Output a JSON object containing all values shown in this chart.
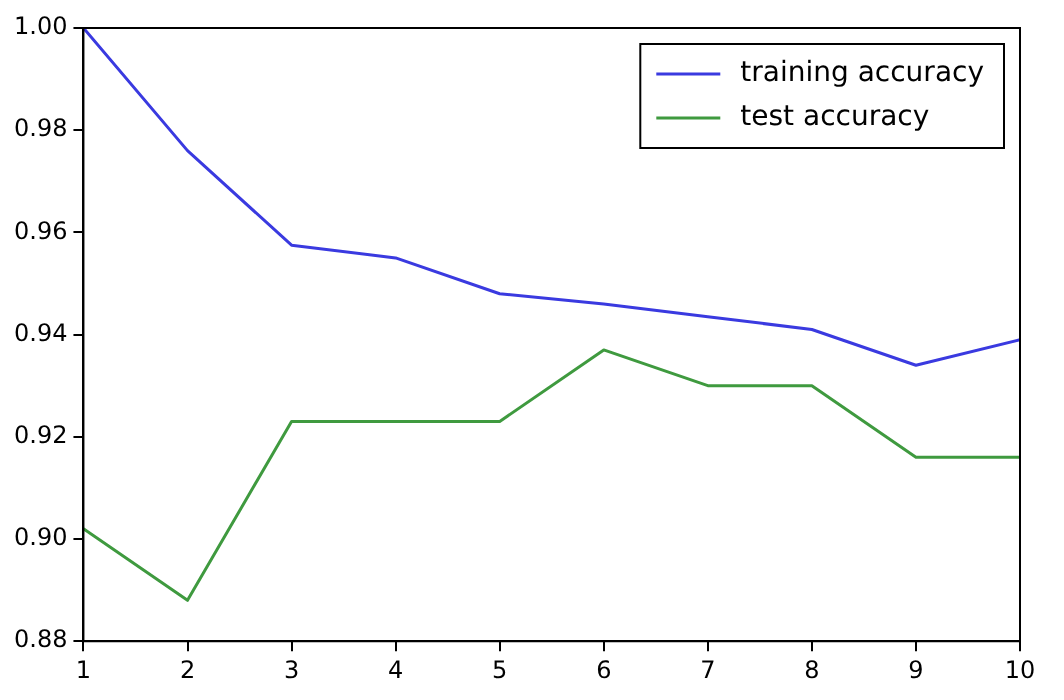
{
  "chart_data": {
    "type": "line",
    "x": [
      1,
      2,
      3,
      4,
      5,
      6,
      7,
      8,
      9,
      10
    ],
    "series": [
      {
        "name": "training accuracy",
        "color": "#3a3ae0",
        "values": [
          1.0,
          0.976,
          0.9575,
          0.955,
          0.948,
          0.946,
          0.9435,
          0.941,
          0.934,
          0.939
        ]
      },
      {
        "name": "test accuracy",
        "color": "#3f9a3f",
        "values": [
          0.902,
          0.888,
          0.923,
          0.923,
          0.923,
          0.937,
          0.93,
          0.93,
          0.916,
          0.916
        ]
      }
    ],
    "xlim": [
      1,
      10
    ],
    "xticks": [
      1,
      2,
      3,
      4,
      5,
      6,
      7,
      8,
      9,
      10
    ],
    "ylim": [
      0.88,
      1.0
    ],
    "yticks": [
      0.88,
      {
        "value": 0.9,
        "label": "0.90"
      },
      0.92,
      0.94,
      0.96,
      0.98,
      {
        "value": 1.0,
        "label": "1.00"
      }
    ],
    "grid": false,
    "legend": "top right",
    "marker": "none",
    "line_style": "solid"
  }
}
